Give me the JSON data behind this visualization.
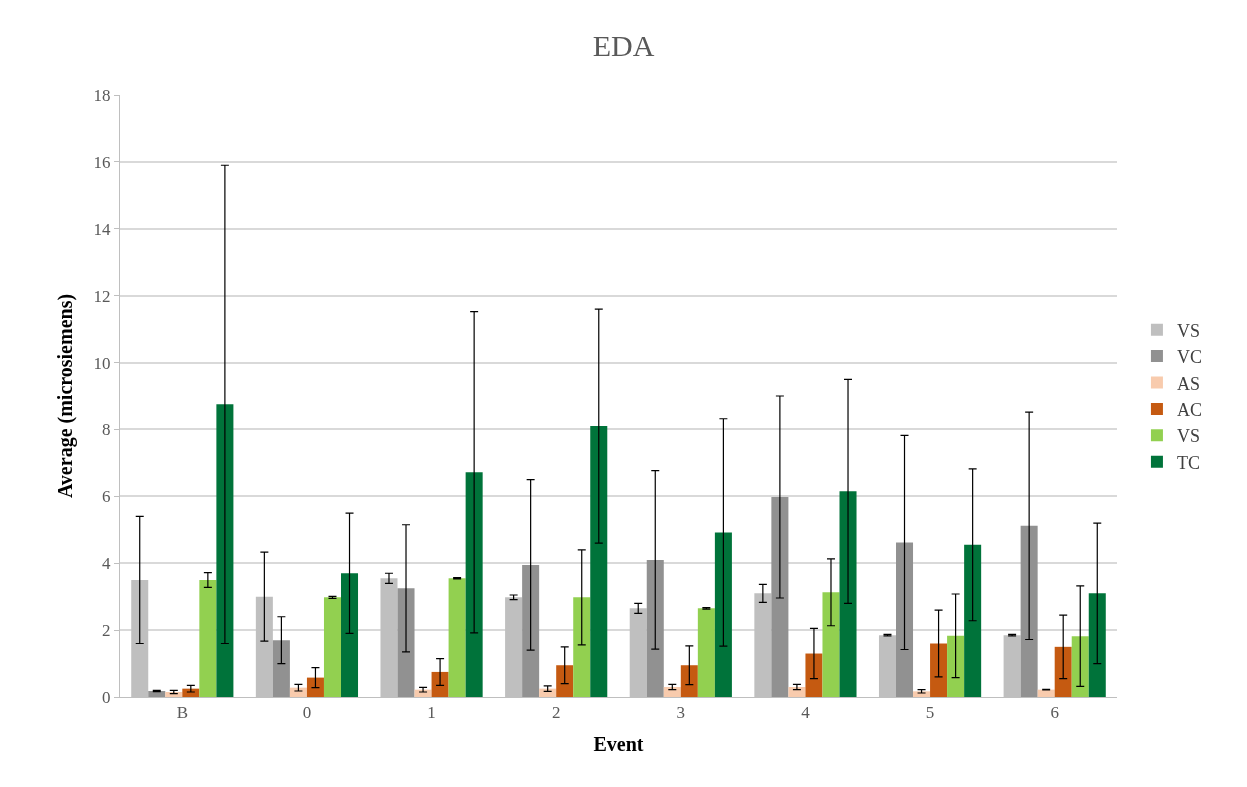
{
  "chart_data": {
    "type": "bar",
    "title": "EDA",
    "xlabel": "Event",
    "ylabel": "Average (microsiemens)",
    "categories": [
      "B",
      "0",
      "1",
      "2",
      "3",
      "4",
      "5",
      "6"
    ],
    "ylim": [
      0,
      18
    ],
    "yticks": [
      0,
      2,
      4,
      6,
      8,
      10,
      12,
      14,
      16,
      18
    ],
    "grid": "y",
    "legend": "right",
    "series": [
      {
        "name": "VS",
        "color": "#bfbfbf",
        "values": [
          3.5,
          3.0,
          3.55,
          2.98,
          2.65,
          3.1,
          1.85,
          1.85
        ],
        "errors": [
          1.9,
          1.33,
          0.15,
          0.07,
          0.15,
          0.27,
          0.02,
          0.02
        ]
      },
      {
        "name": "VC",
        "color": "#919191",
        "values": [
          0.18,
          1.7,
          3.25,
          3.95,
          4.1,
          5.98,
          4.62,
          5.12
        ],
        "errors": [
          0.02,
          0.7,
          1.9,
          2.55,
          2.67,
          3.02,
          3.2,
          3.4
        ]
      },
      {
        "name": "AS",
        "color": "#f8cbad",
        "values": [
          0.15,
          0.28,
          0.22,
          0.25,
          0.3,
          0.3,
          0.17,
          0.22
        ],
        "errors": [
          0.05,
          0.1,
          0.07,
          0.08,
          0.08,
          0.08,
          0.05,
          0.01
        ]
      },
      {
        "name": "AC",
        "color": "#c55a11",
        "values": [
          0.25,
          0.58,
          0.75,
          0.95,
          0.95,
          1.3,
          1.6,
          1.5
        ],
        "errors": [
          0.1,
          0.3,
          0.4,
          0.55,
          0.58,
          0.75,
          1.0,
          0.95
        ]
      },
      {
        "name": "VS",
        "color": "#92d050",
        "values": [
          3.5,
          2.98,
          3.55,
          2.98,
          2.65,
          3.13,
          1.83,
          1.82
        ],
        "errors": [
          0.22,
          0.03,
          0.02,
          1.42,
          0.02,
          1.0,
          1.25,
          1.5
        ]
      },
      {
        "name": "TC",
        "color": "#00733a",
        "values": [
          8.75,
          3.7,
          6.72,
          8.1,
          4.92,
          6.15,
          4.55,
          3.1
        ],
        "errors": [
          7.15,
          1.8,
          4.8,
          3.5,
          3.4,
          3.35,
          2.27,
          2.1
        ]
      }
    ]
  }
}
